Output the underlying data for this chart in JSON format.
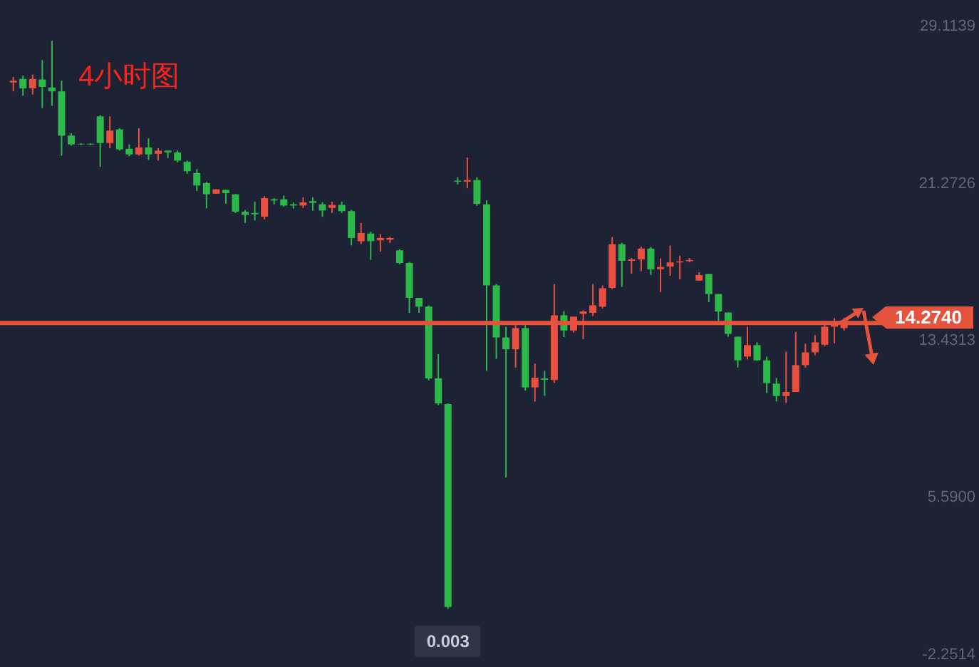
{
  "chart_data": {
    "type": "candlestick",
    "title": "4小时图",
    "categories": [
      null,
      null,
      null,
      null,
      null,
      null,
      null,
      null,
      null,
      null,
      null,
      null,
      null,
      null,
      null,
      null,
      null,
      null,
      null,
      null,
      null,
      null,
      null,
      null,
      null,
      null,
      null,
      null,
      null,
      null,
      null,
      null,
      null,
      null,
      null,
      null,
      null,
      null,
      null,
      null,
      null,
      null,
      null,
      null,
      null,
      null,
      null,
      null,
      null,
      null,
      null,
      null,
      null,
      null,
      null,
      null,
      null,
      null,
      null,
      null,
      null,
      null,
      null,
      null,
      null,
      null,
      null,
      null,
      null,
      null,
      null,
      null,
      null,
      null,
      null,
      null,
      null,
      null,
      null,
      null,
      null,
      null,
      null,
      null,
      null,
      null,
      null
    ],
    "ohlc": [
      [
        26.28,
        26.56,
        25.84,
        26.37
      ],
      [
        26.46,
        26.62,
        25.62,
        25.99
      ],
      [
        25.99,
        26.68,
        25.68,
        26.46
      ],
      [
        26.43,
        27.4,
        25.0,
        26.06
      ],
      [
        26.03,
        28.36,
        25.12,
        25.84
      ],
      [
        25.84,
        26.37,
        22.63,
        23.63
      ],
      [
        23.63,
        23.75,
        23.13,
        23.19
      ],
      [
        23.22,
        23.25,
        23.16,
        23.19
      ],
      [
        23.22,
        23.25,
        23.16,
        23.19
      ],
      [
        24.59,
        24.66,
        22.07,
        23.26
      ],
      [
        23.26,
        24.59,
        23.0,
        23.88
      ],
      [
        23.94,
        24.0,
        22.88,
        22.94
      ],
      [
        22.97,
        23.19,
        22.6,
        22.69
      ],
      [
        22.69,
        24.0,
        22.63,
        23.04
      ],
      [
        23.04,
        23.5,
        22.41,
        22.69
      ],
      [
        22.72,
        23.0,
        22.38,
        22.88
      ],
      [
        22.88,
        22.88,
        22.51,
        22.79
      ],
      [
        22.79,
        22.88,
        22.29,
        22.38
      ],
      [
        22.32,
        22.38,
        21.73,
        21.85
      ],
      [
        21.76,
        21.95,
        20.86,
        21.14
      ],
      [
        21.26,
        21.32,
        20.0,
        20.7
      ],
      [
        20.73,
        20.95,
        20.73,
        20.95
      ],
      [
        20.92,
        20.92,
        20.23,
        20.76
      ],
      [
        20.7,
        20.7,
        19.77,
        19.83
      ],
      [
        19.83,
        19.92,
        19.27,
        19.67
      ],
      [
        19.77,
        20.33,
        19.39,
        19.7
      ],
      [
        19.58,
        20.61,
        19.45,
        20.51
      ],
      [
        20.45,
        20.51,
        20.2,
        20.39
      ],
      [
        20.45,
        20.64,
        20.08,
        20.14
      ],
      [
        20.2,
        20.3,
        19.98,
        20.14
      ],
      [
        20.14,
        20.55,
        20.02,
        20.3
      ],
      [
        20.36,
        20.55,
        19.89,
        20.27
      ],
      [
        20.2,
        20.3,
        19.58,
        19.89
      ],
      [
        20.02,
        20.33,
        19.77,
        20.17
      ],
      [
        20.17,
        20.33,
        19.77,
        19.86
      ],
      [
        19.86,
        19.92,
        18.15,
        18.52
      ],
      [
        18.36,
        19.27,
        18.21,
        18.77
      ],
      [
        18.74,
        18.83,
        17.43,
        18.36
      ],
      [
        18.4,
        18.71,
        17.83,
        18.52
      ],
      [
        18.43,
        18.58,
        18.27,
        18.52
      ],
      [
        17.9,
        17.96,
        17.21,
        17.27
      ],
      [
        17.27,
        17.33,
        14.78,
        15.53
      ],
      [
        15.53,
        15.53,
        14.78,
        15.09
      ],
      [
        15.09,
        15.15,
        11.41,
        11.51
      ],
      [
        11.51,
        12.72,
        10.17,
        10.26
      ],
      [
        10.23,
        10.26,
        0.003,
        0.1
      ],
      [
        21.38,
        21.55,
        21.19,
        21.33
      ],
      [
        21.33,
        22.54,
        21.0,
        21.41
      ],
      [
        21.41,
        21.55,
        20.13,
        20.22
      ],
      [
        20.2,
        20.4,
        11.89,
        16.15
      ],
      [
        16.15,
        16.22,
        12.48,
        13.55
      ],
      [
        13.55,
        14.09,
        6.56,
        12.96
      ],
      [
        12.96,
        14.16,
        12.05,
        14.02
      ],
      [
        14.02,
        14.16,
        10.9,
        11.06
      ],
      [
        11.06,
        12.25,
        10.35,
        11.54
      ],
      [
        11.51,
        11.89,
        10.64,
        11.44
      ],
      [
        11.43,
        16.22,
        11.28,
        14.66
      ],
      [
        14.66,
        14.87,
        13.57,
        13.9
      ],
      [
        13.9,
        14.59,
        13.8,
        14.59
      ],
      [
        14.73,
        14.9,
        13.47,
        14.85
      ],
      [
        14.78,
        16.22,
        14.62,
        15.16
      ],
      [
        15.09,
        16.15,
        15.0,
        16.01
      ],
      [
        16.03,
        18.57,
        15.96,
        18.21
      ],
      [
        18.21,
        18.28,
        16.08,
        17.38
      ],
      [
        17.38,
        17.52,
        16.74,
        17.45
      ],
      [
        17.45,
        18.09,
        16.86,
        17.99
      ],
      [
        17.99,
        18.07,
        16.67,
        16.95
      ],
      [
        16.96,
        17.5,
        15.82,
        17.07
      ],
      [
        17.09,
        18.14,
        16.63,
        17.3
      ],
      [
        17.3,
        17.64,
        16.46,
        17.35
      ],
      [
        17.36,
        17.52,
        17.3,
        17.42
      ],
      [
        16.39,
        16.81,
        16.39,
        16.67
      ],
      [
        16.72,
        16.72,
        15.32,
        15.72
      ],
      [
        15.72,
        15.72,
        14.3,
        14.85
      ],
      [
        14.8,
        14.8,
        13.59,
        13.73
      ],
      [
        13.59,
        13.59,
        12.05,
        12.41
      ],
      [
        12.6,
        14.09,
        12.46,
        13.17
      ],
      [
        13.17,
        13.31,
        12.39,
        12.41
      ],
      [
        12.41,
        12.6,
        10.78,
        11.27
      ],
      [
        11.25,
        11.53,
        10.35,
        10.63
      ],
      [
        10.63,
        12.84,
        10.28,
        10.83
      ],
      [
        10.83,
        13.83,
        10.83,
        12.17
      ],
      [
        12.17,
        13.24,
        12.05,
        12.81
      ],
      [
        12.81,
        13.67,
        12.67,
        13.31
      ],
      [
        13.19,
        14.38,
        13.12,
        14.09
      ],
      [
        14.09,
        14.52,
        13.26,
        14.19
      ],
      [
        14.02,
        14.52,
        13.9,
        14.3
      ]
    ],
    "colors": [
      "#e9503f",
      "#2db84a",
      "#e9503f",
      "#2db84a",
      "#2db84a",
      "#2db84a",
      "#2db84a",
      "#2db84a",
      "#2db84a",
      "#2db84a",
      "#e9503f",
      "#2db84a",
      "#2db84a",
      "#e9503f",
      "#2db84a",
      "#e9503f",
      "#2db84a",
      "#2db84a",
      "#2db84a",
      "#2db84a",
      "#2db84a",
      "#e9503f",
      "#2db84a",
      "#2db84a",
      "#2db84a",
      "#2db84a",
      "#e9503f",
      "#2db84a",
      "#2db84a",
      "#2db84a",
      "#e9503f",
      "#2db84a",
      "#2db84a",
      "#e9503f",
      "#2db84a",
      "#2db84a",
      "#e9503f",
      "#2db84a",
      "#e9503f",
      "#e9503f",
      "#2db84a",
      "#2db84a",
      "#2db84a",
      "#2db84a",
      "#2db84a",
      "#2db84a",
      "#2db84a",
      "#e9503f",
      "#2db84a",
      "#2db84a",
      "#2db84a",
      "#2db84a",
      "#e9503f",
      "#2db84a",
      "#e9503f",
      "#2db84a",
      "#e9503f",
      "#2db84a",
      "#e9503f",
      "#e9503f",
      "#e9503f",
      "#e9503f",
      "#e9503f",
      "#2db84a",
      "#e9503f",
      "#e9503f",
      "#2db84a",
      "#e9503f",
      "#e9503f",
      "#e9503f",
      "#e9503f",
      "#e9503f",
      "#2db84a",
      "#2db84a",
      "#2db84a",
      "#2db84a",
      "#e9503f",
      "#2db84a",
      "#2db84a",
      "#2db84a",
      "#e9503f",
      "#e9503f",
      "#e9503f",
      "#e9503f",
      "#e9503f",
      "#e9503f",
      "#e9503f"
    ],
    "ylim": [
      -2.9,
      30.4
    ],
    "yticks": [
      29.1139,
      21.2726,
      13.4313,
      {
        "value": 5.59,
        "label": "5.5900"
      },
      {
        "value": -2.2514,
        "label": "-2.2514"
      }
    ],
    "ref_lines": [
      {
        "axis": "y",
        "value": 14.274,
        "label": "14.2740",
        "color": "#e5533d"
      }
    ],
    "annotations": [
      {
        "text": "0.003",
        "y": 0.003
      }
    ]
  }
}
